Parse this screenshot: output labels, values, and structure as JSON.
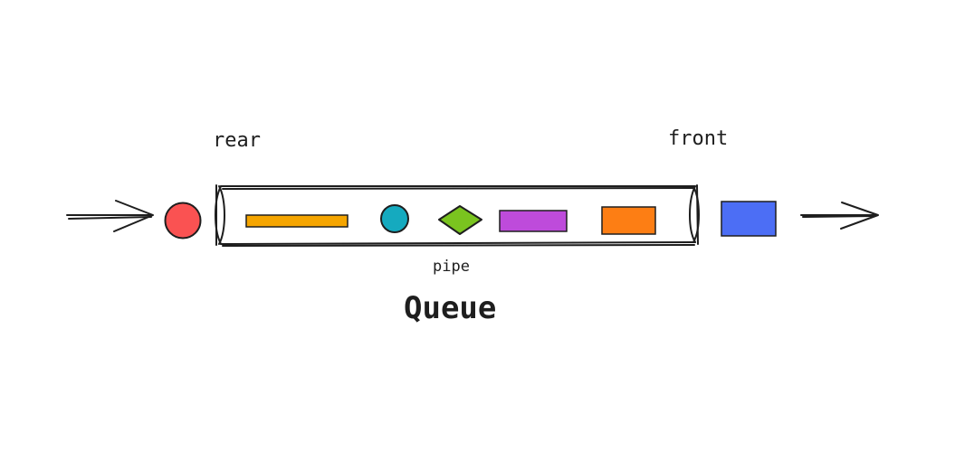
{
  "labels": {
    "rear": "rear",
    "front": "front",
    "pipe": "pipe",
    "title": "Queue"
  },
  "colors": {
    "incoming_circle": "#fa5252",
    "bar_yellow": "#f5a500",
    "circle_teal": "#15aabf",
    "diamond_green": "#7ac41f",
    "rect_purple": "#be4bdb",
    "rect_orange": "#fd7e14",
    "outgoing_square": "#4c6ef5",
    "ink": "#1e1e1e"
  },
  "icons": {
    "incoming_arrow": "arrow-right-icon",
    "outgoing_arrow": "arrow-right-icon"
  }
}
